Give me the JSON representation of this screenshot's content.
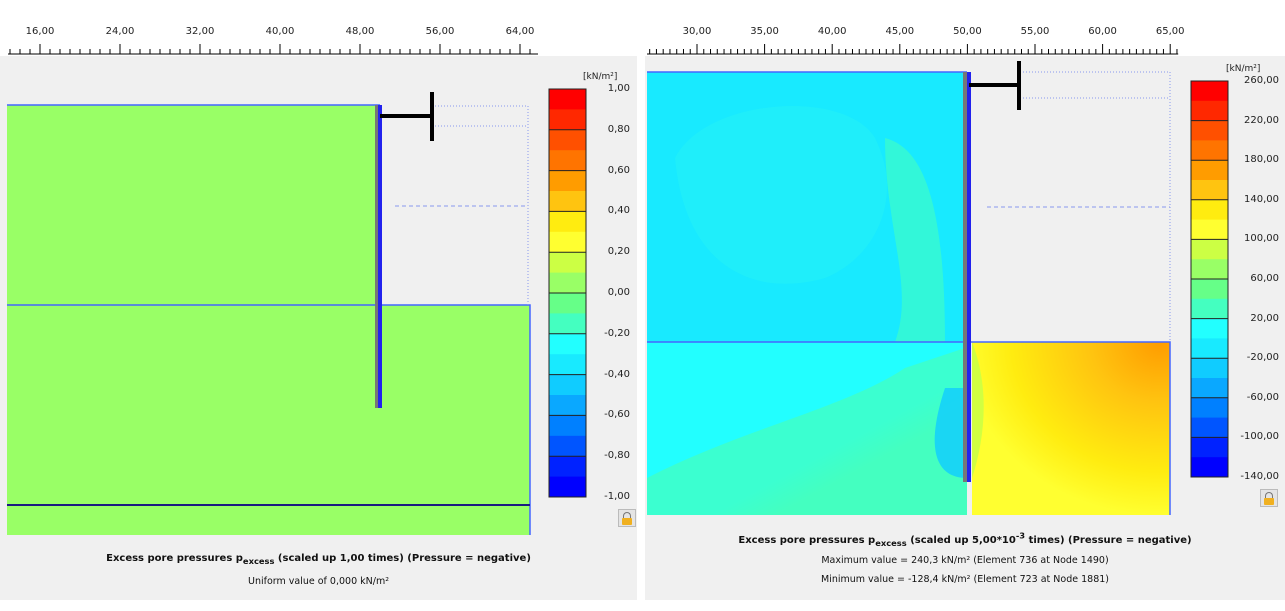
{
  "left": {
    "ruler_ticks": [
      "16,00",
      "24,00",
      "32,00",
      "40,00",
      "48,00",
      "56,00",
      "64,00"
    ],
    "colorbar": {
      "unit": "[kN/m²]",
      "labels": [
        "1,00",
        "0,80",
        "0,60",
        "0,40",
        "0,20",
        "0,00",
        "-0,20",
        "-0,40",
        "-0,60",
        "-0,80",
        "-1,00"
      ]
    },
    "caption": {
      "title_pre": "Excess pore pressures p",
      "title_sub": "excess",
      "title_post": " (scaled up 1,00 times) (Pressure = negative)",
      "line1": "Uniform value of 0,000 kN/m²"
    }
  },
  "right": {
    "ruler_ticks": [
      "30,00",
      "35,00",
      "40,00",
      "45,00",
      "50,00",
      "55,00",
      "60,00",
      "65,00"
    ],
    "colorbar": {
      "unit": "[kN/m²]",
      "labels": [
        "260,00",
        "220,00",
        "180,00",
        "140,00",
        "100,00",
        "60,00",
        "20,00",
        "-20,00",
        "-60,00",
        "-100,00",
        "-140,00"
      ]
    },
    "caption": {
      "title_pre": "Excess pore pressures p",
      "title_sub": "excess",
      "title_post": " (scaled up 5,00*10",
      "title_sup": "-3",
      "title_post2": " times) (Pressure = negative)",
      "line1": "Maximum value = 240,3 kN/m² (Element 736 at Node 1490)",
      "line2": "Minimum value = -128,4 kN/m² (Element 723 at Node 1881)"
    }
  },
  "colors": {
    "bands": [
      "#ff0000",
      "#ff2800",
      "#ff5000",
      "#ff7400",
      "#ff9c00",
      "#ffc410",
      "#ffec10",
      "#ffff30",
      "#ccff44",
      "#99ff66",
      "#66ff88",
      "#44ffc0",
      "#22ffff",
      "#18eaff",
      "#10ccff",
      "#0aa8ff",
      "#0080ff",
      "#0055ff",
      "#0022ff",
      "#0000ff"
    ],
    "uniform": "#99ff66"
  }
}
